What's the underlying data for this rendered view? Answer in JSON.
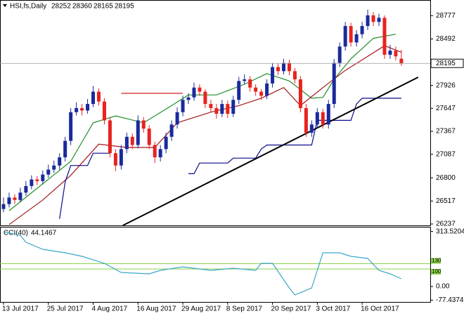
{
  "chart_data": [
    {
      "type": "candlestick",
      "title": "HSI,fs,Daily",
      "categories": [
        "13 Jul 2017",
        null,
        null,
        null,
        null,
        null,
        null,
        null,
        "25 Jul 2017",
        null,
        null,
        null,
        null,
        null,
        null,
        null,
        "4 Aug 2017",
        null,
        null,
        null,
        null,
        null,
        null,
        null,
        "16 Aug 2017",
        null,
        null,
        null,
        null,
        null,
        null,
        null,
        "29 Aug 2017",
        null,
        null,
        null,
        null,
        null,
        null,
        null,
        "8 Sep 2017",
        null,
        null,
        null,
        null,
        null,
        null,
        null,
        "20 Sep 2017",
        null,
        null,
        null,
        null,
        null,
        null,
        null,
        "3 Oct 2017",
        null,
        null,
        null,
        null,
        null,
        null,
        null,
        "16 Oct 2017",
        null,
        null,
        null,
        null,
        null,
        null,
        null
      ],
      "candles": [
        [
          26420,
          26560,
          26380,
          26480
        ],
        [
          26480,
          26620,
          26440,
          26560
        ],
        [
          26560,
          26600,
          26480,
          26530
        ],
        [
          26530,
          26680,
          26500,
          26620
        ],
        [
          26620,
          26760,
          26580,
          26700
        ],
        [
          26700,
          26830,
          26660,
          26780
        ],
        [
          26780,
          26820,
          26710,
          26760
        ],
        [
          26760,
          26890,
          26720,
          26840
        ],
        [
          26840,
          26960,
          26800,
          26900
        ],
        [
          26900,
          27010,
          26860,
          26950
        ],
        [
          26950,
          27100,
          26900,
          27050
        ],
        [
          27050,
          27300,
          27000,
          27250
        ],
        [
          27250,
          27650,
          27200,
          27600
        ],
        [
          27600,
          27720,
          27560,
          27650
        ],
        [
          27650,
          27700,
          27560,
          27620
        ],
        [
          27620,
          27760,
          27580,
          27700
        ],
        [
          27700,
          27920,
          27660,
          27850
        ],
        [
          27850,
          27890,
          27680,
          27730
        ],
        [
          27730,
          27770,
          27450,
          27500
        ],
        [
          27500,
          27540,
          27050,
          27100
        ],
        [
          27100,
          27150,
          26880,
          26950
        ],
        [
          26950,
          27200,
          26900,
          27150
        ],
        [
          27150,
          27350,
          27100,
          27300
        ],
        [
          27300,
          27340,
          27150,
          27200
        ],
        [
          27200,
          27560,
          27160,
          27500
        ],
        [
          27500,
          27540,
          27350,
          27400
        ],
        [
          27400,
          27440,
          27150,
          27200
        ],
        [
          27200,
          27240,
          26980,
          27050
        ],
        [
          27050,
          27200,
          27000,
          27150
        ],
        [
          27150,
          27350,
          27100,
          27300
        ],
        [
          27300,
          27500,
          27250,
          27450
        ],
        [
          27450,
          27660,
          27400,
          27600
        ],
        [
          27600,
          27800,
          27550,
          27750
        ],
        [
          27750,
          27830,
          27700,
          27780
        ],
        [
          27780,
          27960,
          27740,
          27900
        ],
        [
          27900,
          27940,
          27800,
          27850
        ],
        [
          27850,
          27880,
          27650,
          27700
        ],
        [
          27700,
          27750,
          27600,
          27650
        ],
        [
          27650,
          27700,
          27520,
          27580
        ],
        [
          27580,
          27750,
          27540,
          27700
        ],
        [
          27700,
          27740,
          27530,
          27580
        ],
        [
          27580,
          27800,
          27540,
          27750
        ],
        [
          27750,
          28030,
          27700,
          27980
        ],
        [
          27980,
          28060,
          27940,
          28000
        ],
        [
          28000,
          28040,
          27850,
          27900
        ],
        [
          27900,
          27940,
          27800,
          27850
        ],
        [
          27850,
          27880,
          27750,
          27800
        ],
        [
          27800,
          28000,
          27760,
          27950
        ],
        [
          27950,
          28200,
          27900,
          28150
        ],
        [
          28150,
          28190,
          28050,
          28100
        ],
        [
          28100,
          28250,
          28060,
          28200
        ],
        [
          28200,
          28240,
          28050,
          28100
        ],
        [
          28100,
          28140,
          27950,
          28000
        ],
        [
          28000,
          28040,
          27600,
          27650
        ],
        [
          27650,
          27700,
          27300,
          27350
        ],
        [
          27350,
          27500,
          27300,
          27450
        ],
        [
          27450,
          27650,
          27400,
          27600
        ],
        [
          27600,
          27640,
          27400,
          27450
        ],
        [
          27450,
          27750,
          27400,
          27700
        ],
        [
          27700,
          28250,
          27650,
          28200
        ],
        [
          28200,
          28450,
          28150,
          28400
        ],
        [
          28400,
          28700,
          28350,
          28650
        ],
        [
          28650,
          28690,
          28400,
          28450
        ],
        [
          28450,
          28600,
          28400,
          28550
        ],
        [
          28550,
          28700,
          28500,
          28650
        ],
        [
          28650,
          28850,
          28600,
          28780
        ],
        [
          28780,
          28820,
          28650,
          28700
        ],
        [
          28700,
          28800,
          28650,
          28750
        ],
        [
          28750,
          28780,
          28250,
          28300
        ],
        [
          28300,
          28420,
          28250,
          28350
        ],
        [
          28350,
          28400,
          28230,
          28280
        ],
        [
          28252,
          28360,
          28165,
          28195
        ]
      ],
      "up_color": "#1a2a9c",
      "down_color": "#e8231f",
      "ylim": [
        26220,
        28950
      ],
      "yticks": [
        28777,
        28492,
        27926,
        27647,
        27367,
        27087,
        26800,
        26517,
        26237
      ],
      "lines": [
        {
          "color": "#1f8f2a",
          "x": [
            1,
            12,
            16,
            20,
            25,
            30,
            33,
            38,
            43,
            47,
            51,
            55,
            57,
            59,
            62,
            66,
            70
          ],
          "values": [
            26400,
            27000,
            27470,
            27555,
            27470,
            27680,
            27810,
            27810,
            27940,
            28070,
            27980,
            27770,
            27780,
            28000,
            28250,
            28500,
            28550
          ]
        },
        {
          "color": "#a3161c",
          "x": [
            1,
            7,
            12,
            17,
            22,
            27,
            31,
            37,
            42,
            46,
            50,
            53,
            57,
            61,
            65,
            68,
            71
          ],
          "values": [
            26230,
            26530,
            26830,
            27210,
            27170,
            27170,
            27470,
            27600,
            27680,
            27770,
            27900,
            27680,
            27900,
            28110,
            28280,
            28410,
            28330
          ]
        },
        {
          "color": "#0a0a8a",
          "x": [
            10,
            11,
            12,
            15,
            16,
            19,
            20,
            33,
            34,
            35,
            40,
            41,
            45,
            46,
            47,
            55,
            56,
            62,
            63,
            64,
            71
          ],
          "values": [
            26300,
            26750,
            26950,
            26950,
            27100,
            27100,
            null,
            26850,
            26850,
            26980,
            26980,
            27040,
            27040,
            27150,
            27200,
            27200,
            27500,
            27500,
            27700,
            27770,
            27770
          ]
        },
        {
          "color": "#000000",
          "x": [
            21.3,
            74
          ],
          "values": [
            26220,
            28026
          ]
        },
        {
          "color": "#d41f1f",
          "x": [
            21,
            32
          ],
          "values": [
            27830,
            27830
          ]
        }
      ]
    },
    {
      "type": "line",
      "title": "CCI(40)",
      "color": "#3aa6c9",
      "x": [
        0,
        3,
        4,
        7,
        11,
        14,
        18,
        21,
        26,
        28,
        32,
        37,
        41,
        45,
        46,
        48,
        51,
        52,
        55,
        56,
        57,
        60,
        62,
        65,
        67,
        69,
        71
      ],
      "values": [
        312,
        292,
        252,
        212,
        192,
        172,
        132,
        80,
        72,
        92,
        112,
        92,
        104,
        92,
        132,
        132,
        -8,
        -48,
        -8,
        92,
        192,
        192,
        172,
        160,
        92,
        72,
        44.1467
      ],
      "ylim": [
        -88,
        340
      ],
      "yticks": [
        313.5204,
        {
          "value": 0,
          "label": "0.00"
        },
        -77.4374
      ],
      "levels": [
        130,
        100
      ],
      "level_color": "#8bd14a"
    }
  ]
}
